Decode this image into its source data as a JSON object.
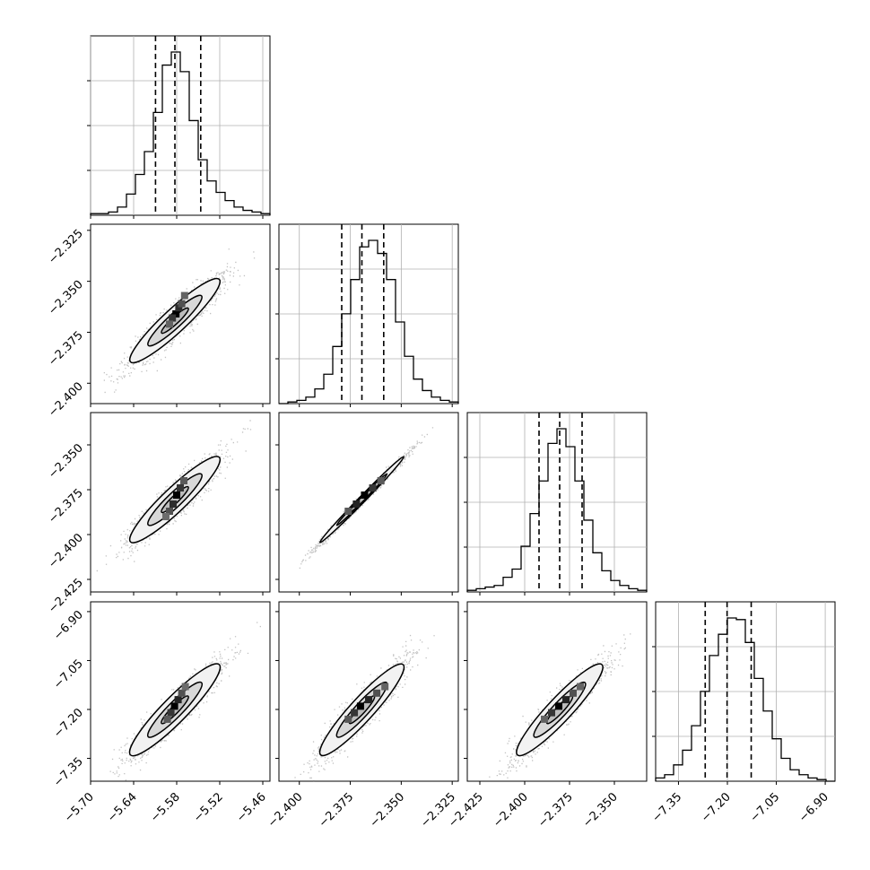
{
  "chart_data": {
    "type": "corner",
    "colors": {
      "hist": "#000000",
      "contour": "#000000",
      "points": "#777777",
      "grid": "#b0b0b0"
    },
    "grid": true,
    "parameters": [
      {
        "range": [
          -5.7,
          -5.45
        ],
        "ticks": [
          -5.7,
          -5.64,
          -5.58,
          -5.52,
          -5.46
        ],
        "tick_labels": [
          "−5.70",
          "−5.64",
          "−5.58",
          "−5.52",
          "−5.46"
        ],
        "quantiles": [
          -5.6095,
          -5.5825,
          -5.5465
        ],
        "histogram": [
          1,
          1,
          2,
          5,
          13,
          25,
          39,
          63,
          92,
          100,
          88,
          58,
          34,
          21,
          14,
          9,
          5,
          3,
          2,
          1
        ]
      },
      {
        "range": [
          -2.41,
          -2.322
        ],
        "ticks": [
          -2.4,
          -2.375,
          -2.35,
          -2.325
        ],
        "tick_labels": [
          "−2.400",
          "−2.375",
          "−2.350",
          "−2.325"
        ],
        "quantiles": [
          -2.3792,
          -2.3693,
          -2.3586
        ],
        "histogram": [
          0,
          1,
          2,
          4,
          9,
          18,
          35,
          55,
          76,
          96,
          100,
          92,
          76,
          50,
          29,
          15,
          8,
          4,
          2,
          1
        ]
      },
      {
        "range": [
          -2.432,
          -2.332
        ],
        "ticks": [
          -2.425,
          -2.4,
          -2.375,
          -2.35
        ],
        "tick_labels": [
          "−2.425",
          "−2.400",
          "−2.375",
          "−2.350"
        ],
        "quantiles": [
          -2.392,
          -2.3805,
          -2.368
        ],
        "histogram": [
          1,
          2,
          3,
          4,
          9,
          14,
          28,
          48,
          68,
          91,
          100,
          89,
          68,
          44,
          24,
          13,
          7,
          4,
          2,
          1
        ]
      },
      {
        "range": [
          -7.42,
          -6.87
        ],
        "ticks": [
          -7.35,
          -7.2,
          -7.05,
          -6.9
        ],
        "tick_labels": [
          "−7.35",
          "−7.20",
          "−7.05",
          "−6.90"
        ],
        "quantiles": [
          -7.268,
          -7.201,
          -7.127
        ],
        "histogram": [
          2,
          4,
          10,
          19,
          34,
          55,
          77,
          90,
          100,
          99,
          85,
          63,
          43,
          26,
          14,
          7,
          4,
          2,
          1,
          0
        ]
      }
    ],
    "density_blocks": [
      {
        "row": 1,
        "col": 0,
        "blocks": [
          [
            -5.581,
            -2.366,
            1.0
          ],
          [
            -5.577,
            -2.363,
            0.75
          ],
          [
            -5.586,
            -2.368,
            0.7
          ],
          [
            -5.573,
            -2.361,
            0.55
          ],
          [
            -5.59,
            -2.371,
            0.45
          ],
          [
            -5.569,
            -2.357,
            0.45
          ]
        ]
      },
      {
        "row": 2,
        "col": 0,
        "blocks": [
          [
            -5.58,
            -2.378,
            1.0
          ],
          [
            -5.585,
            -2.383,
            0.75
          ],
          [
            -5.575,
            -2.374,
            0.7
          ],
          [
            -5.59,
            -2.387,
            0.55
          ],
          [
            -5.57,
            -2.37,
            0.5
          ],
          [
            -5.595,
            -2.39,
            0.4
          ]
        ]
      },
      {
        "row": 2,
        "col": 1,
        "blocks": [
          [
            -2.368,
            -2.378,
            1.0
          ],
          [
            -2.372,
            -2.383,
            0.8
          ],
          [
            -2.364,
            -2.374,
            0.7
          ],
          [
            -2.376,
            -2.387,
            0.5
          ],
          [
            -2.36,
            -2.37,
            0.5
          ]
        ]
      },
      {
        "row": 3,
        "col": 0,
        "blocks": [
          [
            -5.583,
            -7.19,
            1.0
          ],
          [
            -5.578,
            -7.17,
            0.8
          ],
          [
            -5.588,
            -7.21,
            0.7
          ],
          [
            -5.573,
            -7.15,
            0.55
          ],
          [
            -5.593,
            -7.23,
            0.5
          ],
          [
            -5.568,
            -7.13,
            0.4
          ]
        ]
      },
      {
        "row": 3,
        "col": 1,
        "blocks": [
          [
            -2.37,
            -7.19,
            1.0
          ],
          [
            -2.366,
            -7.17,
            0.8
          ],
          [
            -2.373,
            -7.21,
            0.7
          ],
          [
            -2.362,
            -7.15,
            0.55
          ],
          [
            -2.376,
            -7.23,
            0.5
          ],
          [
            -2.358,
            -7.13,
            0.45
          ]
        ]
      },
      {
        "row": 3,
        "col": 2,
        "blocks": [
          [
            -2.381,
            -7.19,
            1.0
          ],
          [
            -2.377,
            -7.17,
            0.8
          ],
          [
            -2.385,
            -7.21,
            0.7
          ],
          [
            -2.373,
            -7.15,
            0.55
          ],
          [
            -2.389,
            -7.23,
            0.45
          ],
          [
            -2.369,
            -7.13,
            0.45
          ]
        ]
      }
    ]
  }
}
